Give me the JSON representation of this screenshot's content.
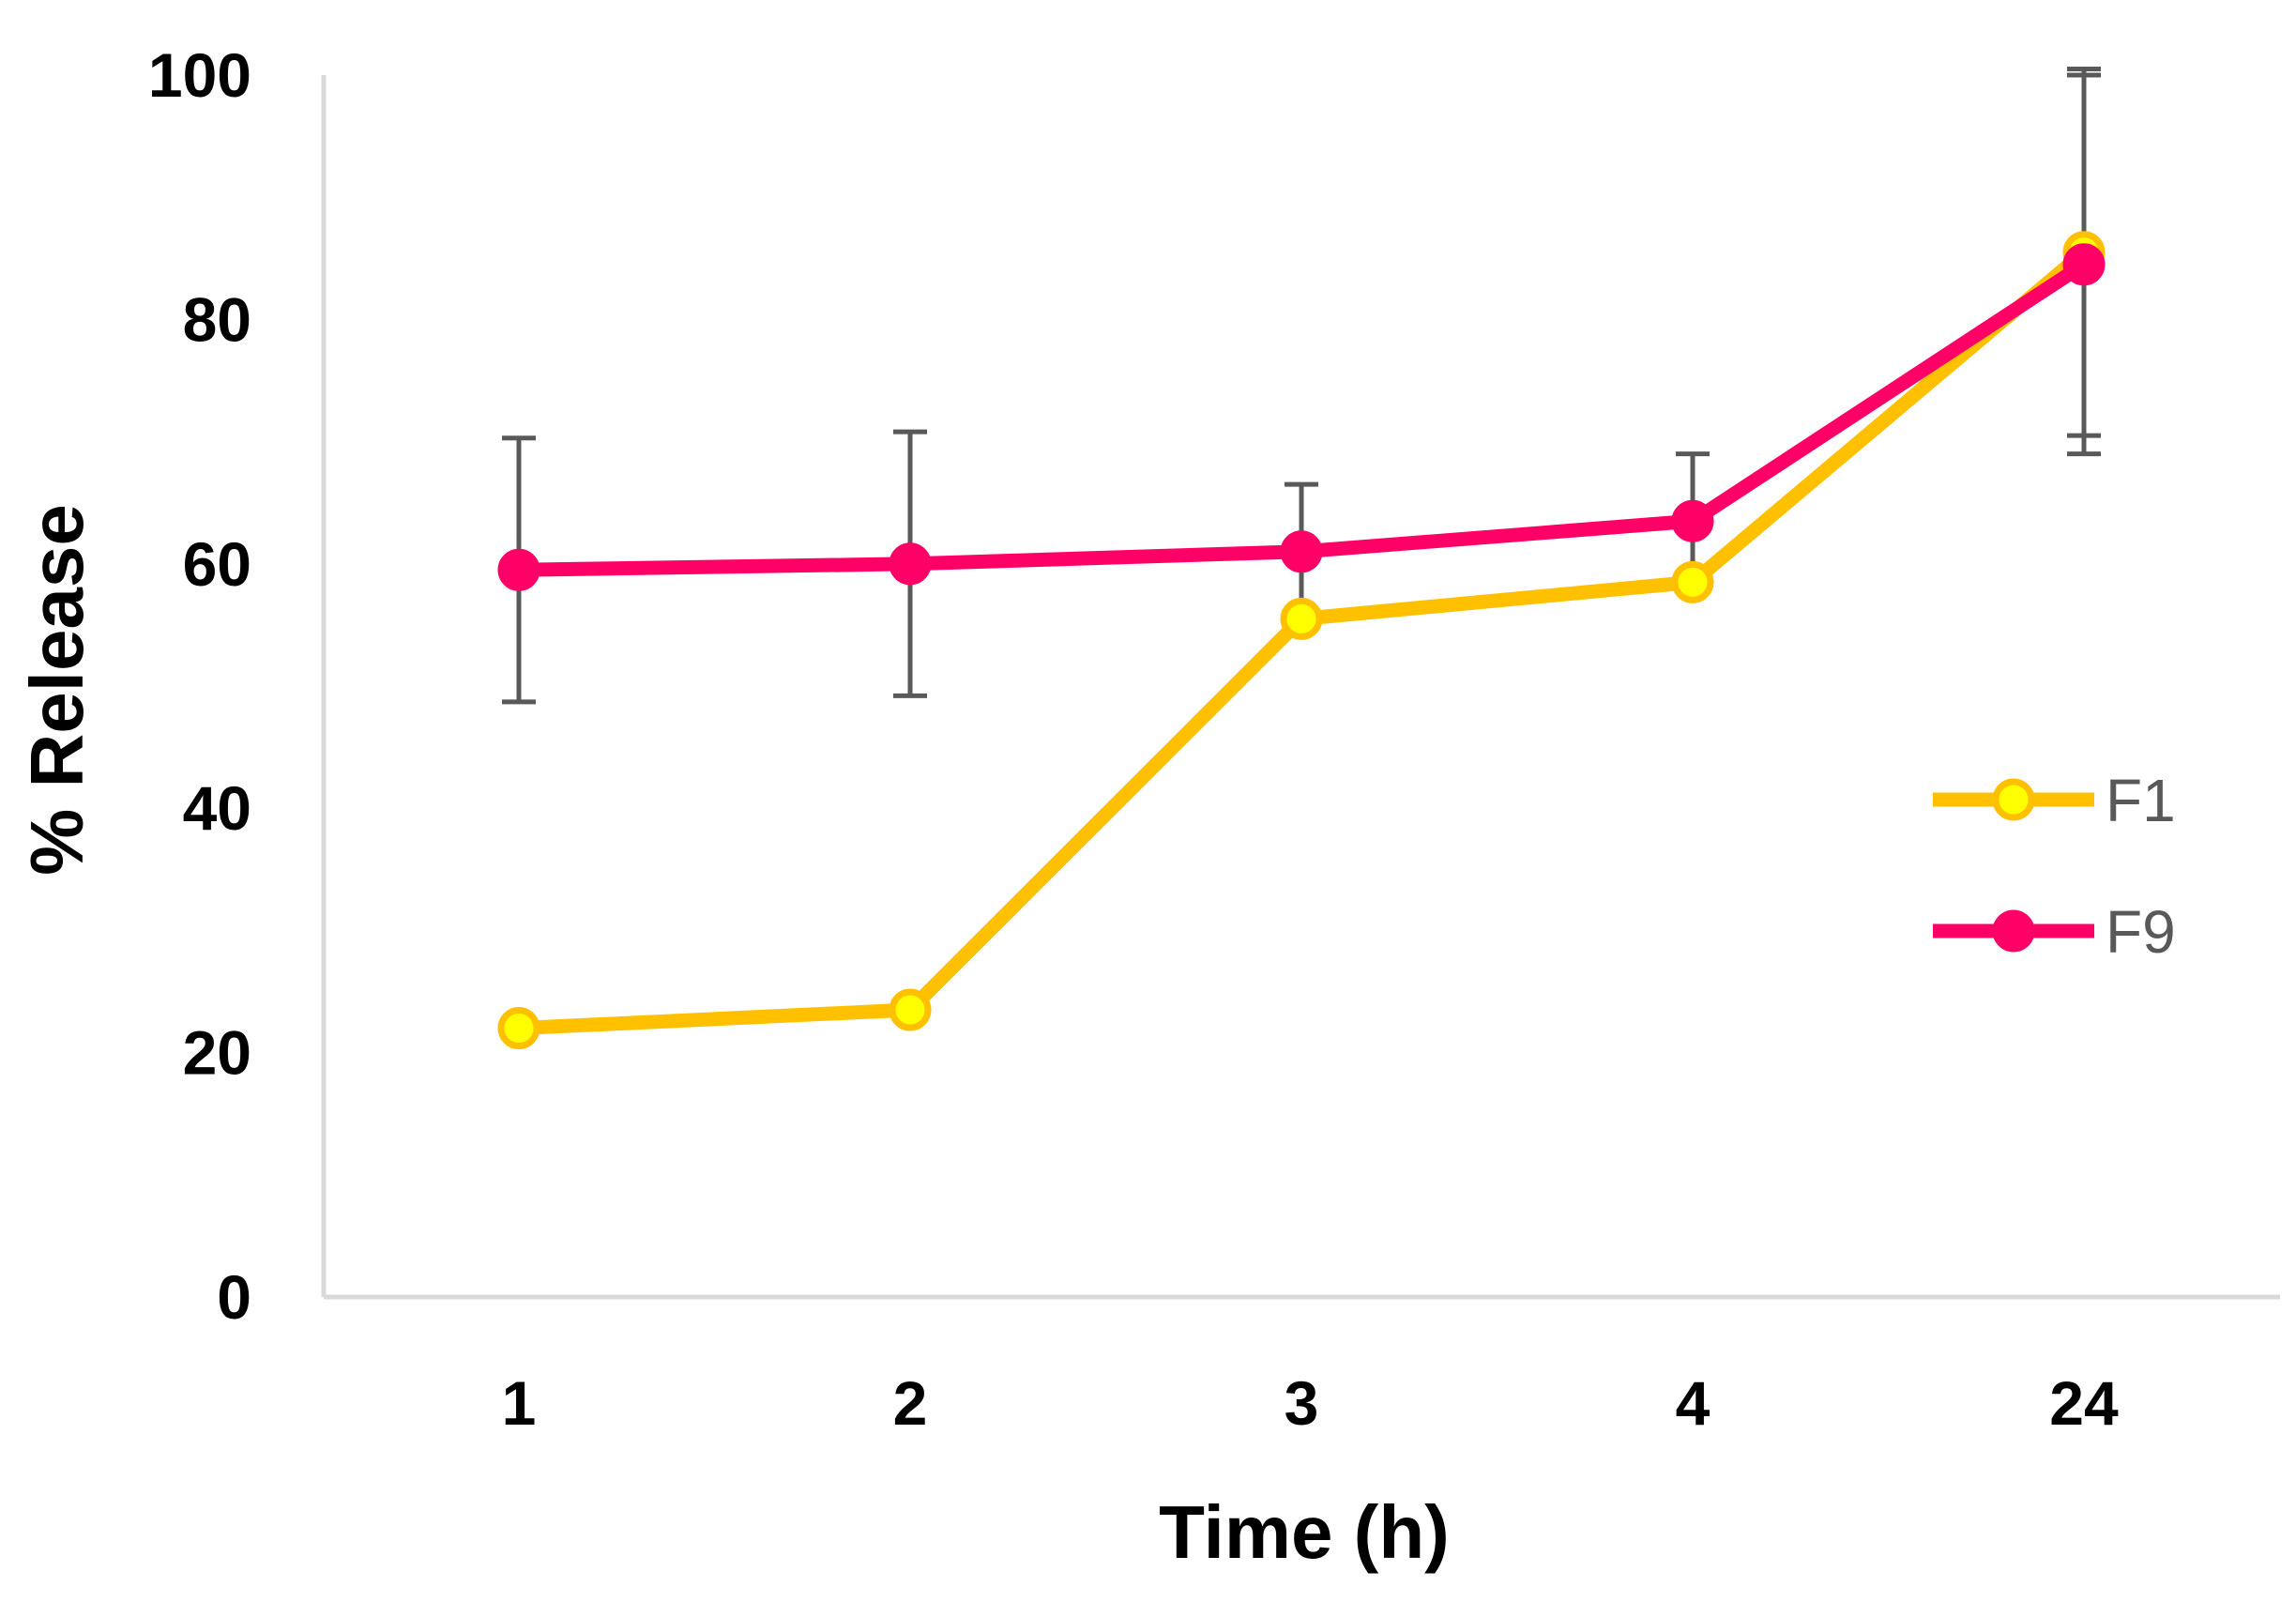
{
  "chart_data": {
    "type": "line",
    "title": "",
    "xlabel": "Time (h)",
    "ylabel": "% Release",
    "categories": [
      "1",
      "2",
      "3",
      "4",
      "24"
    ],
    "ylim": [
      0,
      100
    ],
    "yticks": [
      0,
      20,
      40,
      60,
      80,
      100
    ],
    "grid": false,
    "legend_position": "right",
    "series": [
      {
        "name": "F1",
        "values": [
          22,
          23.5,
          55.5,
          58.5,
          85.5
        ],
        "color": "#FFC000",
        "marker_fill": "#FFFF00",
        "error": [
          null,
          null,
          null,
          null,
          15
        ]
      },
      {
        "name": "F9",
        "values": [
          59.5,
          60,
          61,
          63.5,
          84.5
        ],
        "color": "#FF0066",
        "marker_fill": "#FF0066",
        "error": [
          10.8,
          10.8,
          5.5,
          5.5,
          15.5
        ]
      }
    ],
    "error_bar_color": "#595959",
    "axis_line_color": "#d9d9d9"
  }
}
